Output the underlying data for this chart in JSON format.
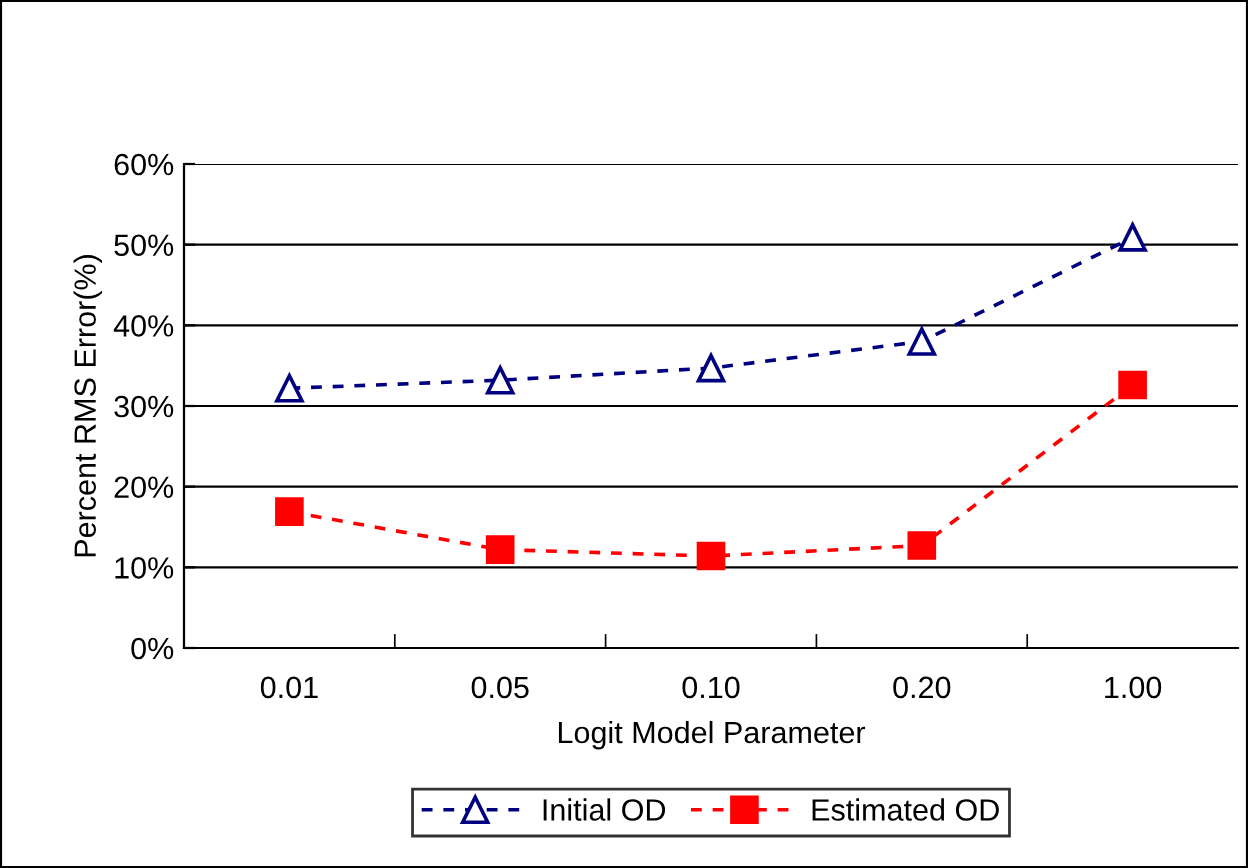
{
  "chart_data": {
    "type": "line",
    "xlabel": "Logit Model Parameter",
    "ylabel": "Percent RMS Error(%)",
    "categories": [
      "0.01",
      "0.05",
      "0.10",
      "0.20",
      "1.00"
    ],
    "series": [
      {
        "name": "Initial OD",
        "color": "#000080",
        "marker": "triangle",
        "values": [
          32.2,
          33.2,
          34.7,
          38.0,
          50.9
        ]
      },
      {
        "name": "Estimated OD",
        "color": "#ff0000",
        "marker": "square",
        "values": [
          16.9,
          12.2,
          11.4,
          12.7,
          32.6
        ]
      }
    ],
    "ylim": [
      0,
      60
    ],
    "yticks": [
      {
        "value": 0,
        "label": "0%"
      },
      {
        "value": 10,
        "label": "10%"
      },
      {
        "value": 20,
        "label": "20%"
      },
      {
        "value": 30,
        "label": "30%"
      },
      {
        "value": 40,
        "label": "40%"
      },
      {
        "value": 50,
        "label": "50%"
      },
      {
        "value": 60,
        "label": "60%"
      }
    ],
    "grid": "y",
    "legend": "bottom",
    "line_style": "dotted"
  }
}
